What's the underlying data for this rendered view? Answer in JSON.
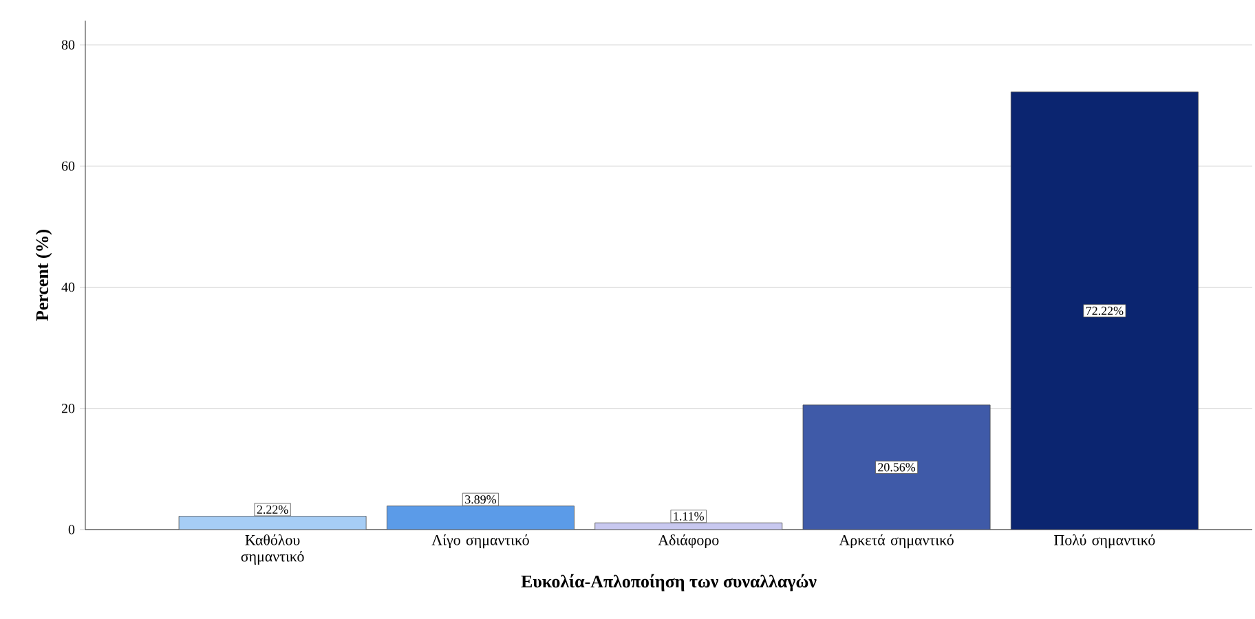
{
  "chart_data": {
    "type": "bar",
    "xlabel": "**Ευκολία-Απλοποίηση των συναλλαγών**",
    "ylabel": "**Percent (%)**",
    "categories": [
      "Καθόλου σημαντικό",
      "Λίγο σημαντικό",
      "Αδιάφορο",
      "Αρκετά σημαντικό",
      "Πολύ σημαντικό"
    ],
    "values": [
      2.22,
      3.89,
      1.11,
      20.56,
      72.22
    ],
    "colors": [
      "#a6cdf5",
      "#5b9be8",
      "#c8c8f0",
      "#3f5aa8",
      "#0b2570"
    ],
    "value_labels": [
      "2.22%",
      "3.89%",
      "1.11%",
      "20.56%",
      "72.22%"
    ],
    "ylim": [
      0,
      84
    ],
    "yticks": [
      0,
      20,
      40,
      60,
      80
    ],
    "grid": "y"
  }
}
